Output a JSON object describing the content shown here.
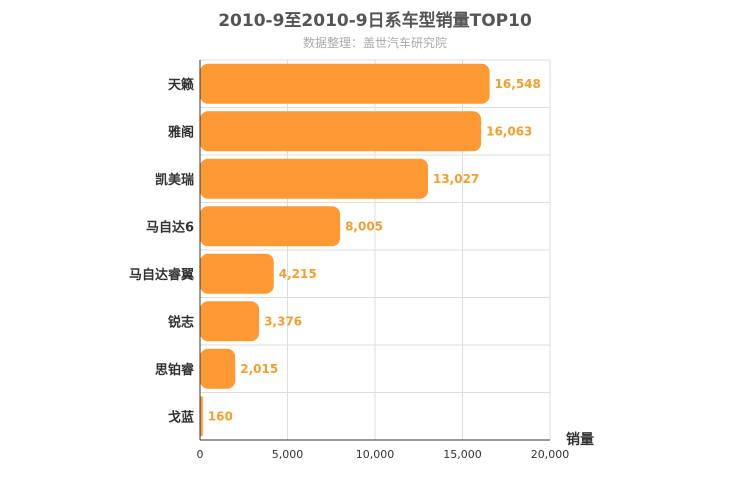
{
  "chart_data": {
    "type": "bar",
    "orientation": "horizontal",
    "title": "2010-9至2010-9日系车型销量TOP10",
    "subtitle": "数据整理：盖世汽车研究院",
    "xlabel": "销量",
    "categories": [
      "天籁",
      "雅阁",
      "凯美瑞",
      "马自达6",
      "马自达睿翼",
      "锐志",
      "思铂睿",
      "戈蓝"
    ],
    "values": [
      16548,
      16063,
      13027,
      8005,
      4215,
      3376,
      2015,
      160
    ],
    "value_labels": [
      "16,548",
      "16,063",
      "13,027",
      "8,005",
      "4,215",
      "3,376",
      "2,015",
      "160"
    ],
    "xlim": [
      0,
      20000
    ],
    "xticks": [
      0,
      5000,
      10000,
      15000,
      20000
    ],
    "xtick_labels": [
      "0",
      "5,000",
      "10,000",
      "15,000",
      "20,000"
    ],
    "grid": true,
    "bar_color": "#ff9933",
    "label_color": "#f0a030"
  }
}
